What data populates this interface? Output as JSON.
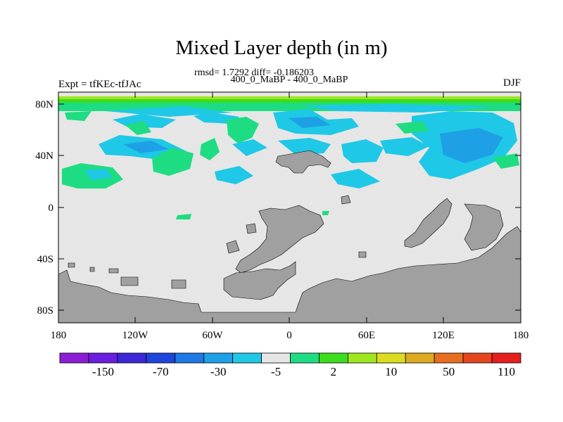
{
  "title": "Mixed Layer depth (in m)",
  "stats": "rmsd= 1.7292 diff= -0.186203",
  "period": "400_0_MaBP - 400_0_MaBP",
  "expt_label": "Expt = tfKEc-tfJAc",
  "season": "DJF",
  "lat_ticks": [
    "80N",
    "40N",
    "0",
    "40S",
    "80S"
  ],
  "lon_ticks": [
    "180",
    "120W",
    "60W",
    "0",
    "60E",
    "120E",
    "180"
  ],
  "colorbar": {
    "colors": [
      "#8c1ed6",
      "#6a1ee0",
      "#3c28d8",
      "#1e46dc",
      "#1e78e6",
      "#1ea0e6",
      "#1ec8e6",
      "#e6e6e6",
      "#1edc82",
      "#3cdc1e",
      "#a0e61e",
      "#dcdc1e",
      "#dcaa1e",
      "#e66e1e",
      "#e6461e",
      "#e61e1e"
    ],
    "labels": [
      "-150",
      "-70",
      "-30",
      "-5",
      "2",
      "10",
      "50",
      "110"
    ]
  },
  "legend_colors": {
    "ocean_zero": "#e6e6e6",
    "land": "#a0a0a0",
    "negative_light": "#1ec8e6",
    "negative_mid": "#1ea0e6",
    "positive_light": "#1edc82",
    "positive_mid": "#3cdc1e",
    "positive_high": "#a0e61e"
  }
}
